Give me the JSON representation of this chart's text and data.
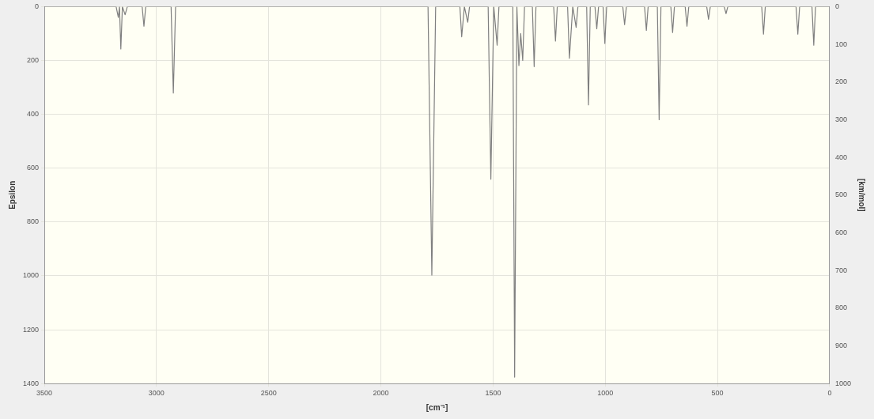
{
  "chart_data": {
    "type": "line",
    "xlabel": "[cm⁻¹]",
    "ylabel": "Epsilon",
    "y2label": "[km/mol]",
    "xlim": [
      3500,
      0
    ],
    "xticks": [
      3500,
      3000,
      2500,
      2000,
      1500,
      1000,
      500,
      0
    ],
    "ylim": [
      1400,
      0
    ],
    "yticks": [
      0,
      200,
      400,
      600,
      800,
      1000,
      1200,
      1400
    ],
    "y2lim": [
      1000,
      0
    ],
    "y2ticks": [
      0,
      100,
      200,
      300,
      400,
      500,
      600,
      700,
      800,
      900,
      1000
    ],
    "grid": true,
    "legend": false,
    "marker": "none",
    "line_style": "solid",
    "color": "#7f7f7f",
    "x": [
      3500,
      3180,
      3170,
      3165,
      3159,
      3152,
      3140,
      3130,
      3064,
      3056,
      3048,
      2935,
      2925,
      2915,
      1790,
      1773,
      1756,
      1648,
      1640,
      1628,
      1613,
      1605,
      1522,
      1510,
      1497,
      1482,
      1474,
      1412,
      1404,
      1394,
      1385,
      1377,
      1368,
      1360,
      1325,
      1317,
      1309,
      1230,
      1222,
      1214,
      1168,
      1160,
      1145,
      1130,
      1122,
      1083,
      1075,
      1067,
      1046,
      1038,
      1030,
      1010,
      1002,
      994,
      922,
      914,
      906,
      825,
      817,
      809,
      768,
      760,
      752,
      708,
      700,
      692,
      644,
      636,
      628,
      548,
      540,
      532,
      470,
      462,
      454,
      303,
      295,
      287,
      150,
      142,
      134,
      79,
      71,
      63,
      0
    ],
    "values": [
      0,
      0,
      40,
      0,
      157,
      0,
      30,
      0,
      0,
      73,
      0,
      0,
      321,
      0,
      0,
      997,
      0,
      0,
      112,
      0,
      58,
      0,
      0,
      641,
      0,
      143,
      0,
      0,
      1376,
      0,
      219,
      100,
      200,
      0,
      0,
      223,
      0,
      0,
      128,
      0,
      0,
      192,
      0,
      77,
      0,
      0,
      365,
      0,
      0,
      82,
      0,
      0,
      137,
      0,
      0,
      67,
      0,
      0,
      88,
      0,
      0,
      420,
      0,
      0,
      96,
      0,
      0,
      73,
      0,
      0,
      47,
      0,
      0,
      26,
      0,
      0,
      102,
      0,
      0,
      102,
      0,
      0,
      143,
      0,
      0
    ]
  }
}
